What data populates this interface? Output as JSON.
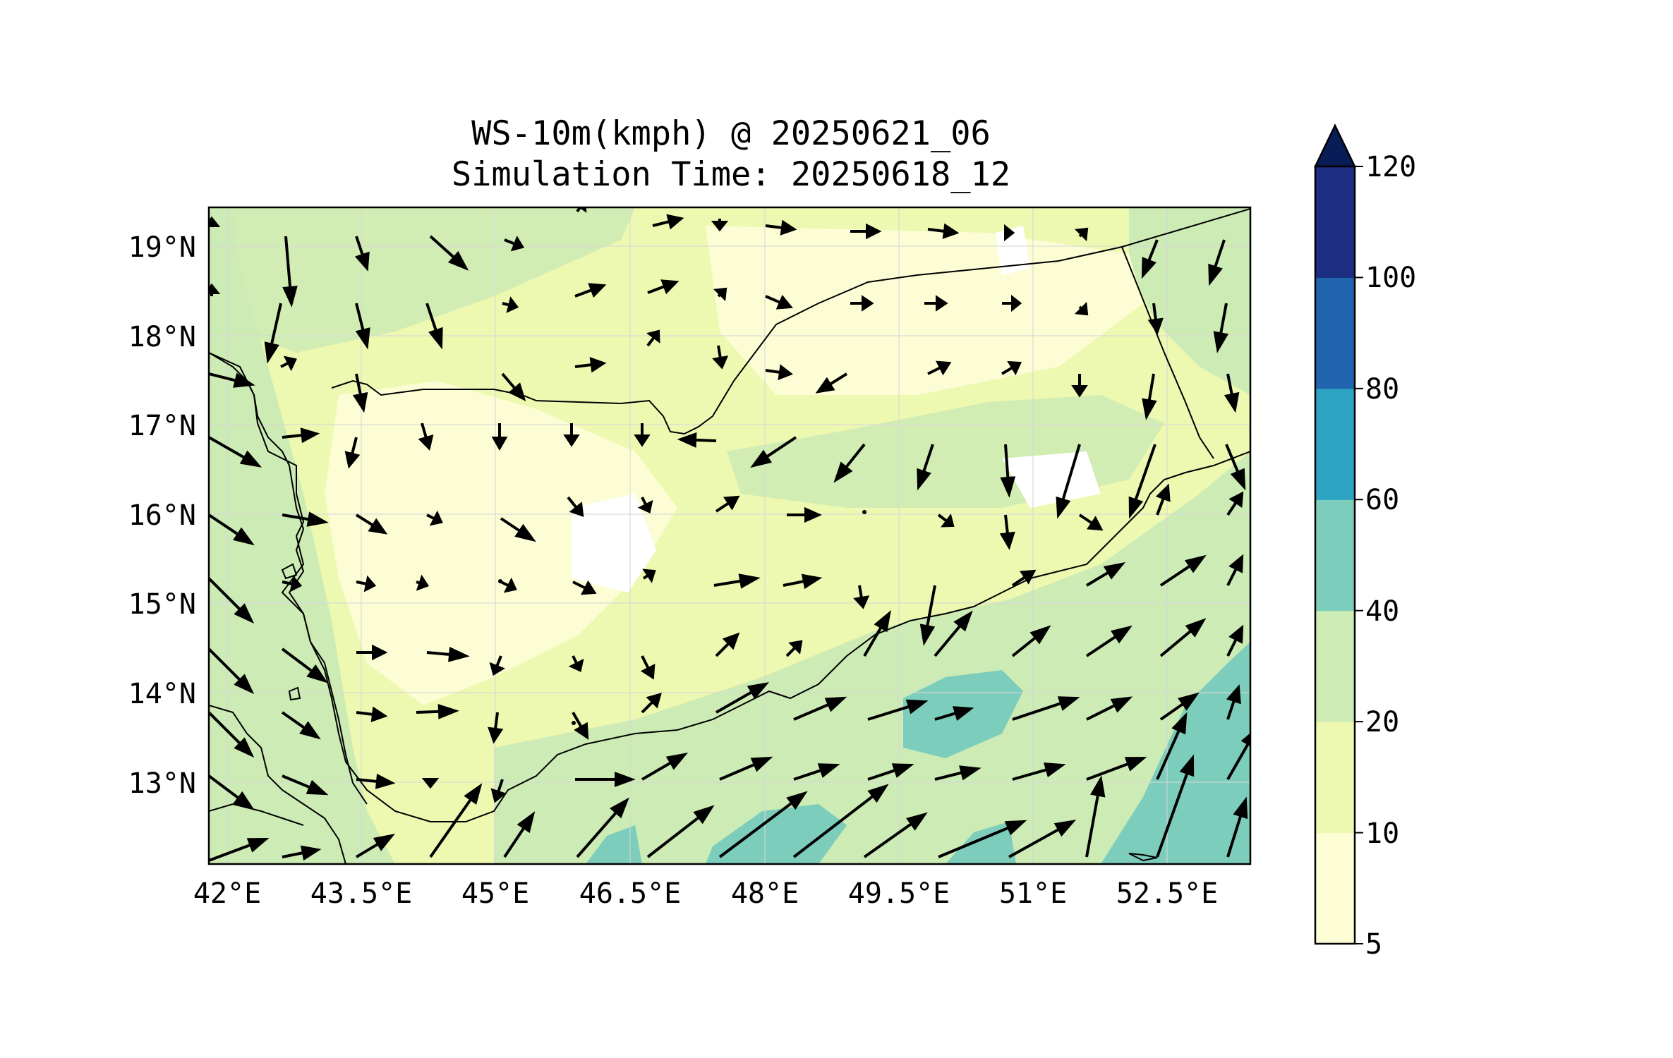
{
  "title_line1": "WS-10m(kmph) @ 20250621_06",
  "title_line2": "Simulation Time: 20250618_12",
  "map": {
    "x_ticks": [
      "42°E",
      "43.5°E",
      "45°E",
      "46.5°E",
      "48°E",
      "49.5°E",
      "51°E",
      "52.5°E"
    ],
    "y_ticks": [
      "19°N",
      "18°N",
      "17°N",
      "16°N",
      "15°N",
      "14°N",
      "13°N"
    ],
    "lon_range": [
      41.9,
      53.6
    ],
    "lat_range": [
      12.1,
      19.45
    ]
  },
  "colorbar": {
    "levels": [
      5,
      10,
      20,
      40,
      60,
      80,
      100,
      120
    ],
    "labels": [
      "5",
      "10",
      "20",
      "40",
      "60",
      "80",
      "100",
      "120"
    ],
    "colors": [
      "#fcfdd4",
      "#edf8b1",
      "#cdebb4",
      "#7ccdbb",
      "#2ca3c2",
      "#2064ad",
      "#1d2e83"
    ],
    "extend_color": "#081d58"
  },
  "colors": {
    "background": "#ffffff",
    "frame": "#000000",
    "arrow": "#000000",
    "grid": "#d8d8d8"
  }
}
